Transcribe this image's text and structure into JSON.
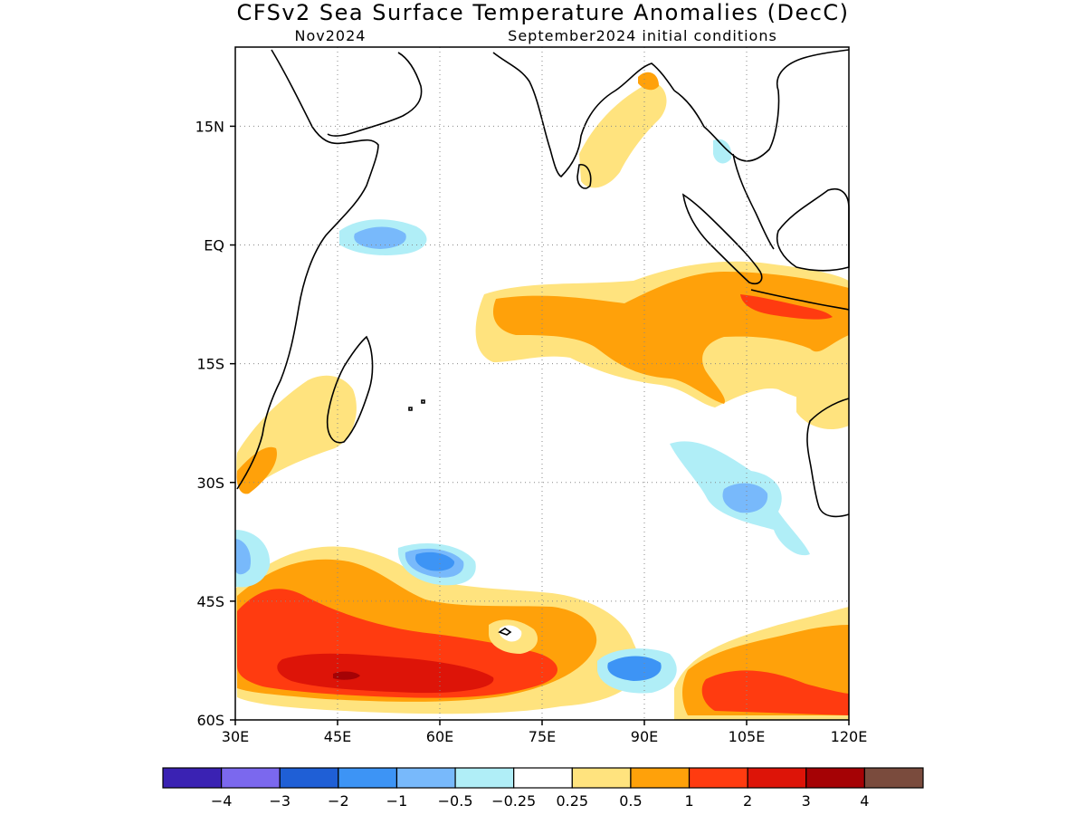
{
  "header": {
    "title": "CFSv2 Sea Surface Temperature Anomalies (DecC)",
    "target_month": "Nov2024",
    "initial_conditions": "September2024 initial conditions"
  },
  "map": {
    "lon_range": [
      30,
      120
    ],
    "lat_range": [
      -60,
      25
    ],
    "x_ticks": [
      {
        "value": 30,
        "label": "30E"
      },
      {
        "value": 45,
        "label": "45E"
      },
      {
        "value": 60,
        "label": "60E"
      },
      {
        "value": 75,
        "label": "75E"
      },
      {
        "value": 90,
        "label": "90E"
      },
      {
        "value": 105,
        "label": "105E"
      },
      {
        "value": 120,
        "label": "120E"
      }
    ],
    "y_ticks": [
      {
        "value": 15,
        "label": "15N"
      },
      {
        "value": 0,
        "label": "EQ"
      },
      {
        "value": -15,
        "label": "15S"
      },
      {
        "value": -30,
        "label": "30S"
      },
      {
        "value": -45,
        "label": "45S"
      },
      {
        "value": -60,
        "label": "60S"
      }
    ],
    "grid_lines": "dotted"
  },
  "colorbar": {
    "colors": [
      "#3a22b3",
      "#7b68ee",
      "#1f5fd6",
      "#3d94f5",
      "#78b9fb",
      "#b0eef7",
      "#ffffff",
      "#ffe37e",
      "#ffa10a",
      "#ff3b10",
      "#dd1408",
      "#a50205",
      "#7a4b3d"
    ],
    "labels": [
      "−4",
      "−3",
      "−2",
      "−1",
      "−0.5",
      "−0.25",
      "0.25",
      "0.5",
      "1",
      "2",
      "3",
      "4"
    ]
  }
}
